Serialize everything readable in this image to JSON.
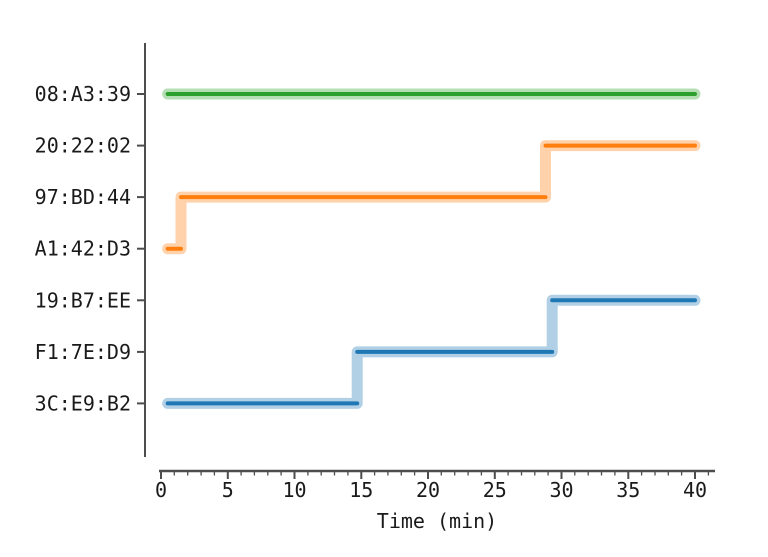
{
  "chart_data": {
    "type": "step",
    "title": "",
    "xlabel": "Time (min)",
    "ylabel": "",
    "xlim": [
      -0.2,
      41.5
    ],
    "x_major_ticks": [
      0,
      5,
      10,
      15,
      20,
      25,
      30,
      35,
      40
    ],
    "x_tick_labels": [
      "0",
      "5",
      "10",
      "15",
      "20",
      "25",
      "30",
      "35",
      "40"
    ],
    "x_minor_tick_step": 1,
    "grid": false,
    "legend": "none",
    "categories_top_to_bottom": [
      "08:A3:39",
      "20:22:02",
      "97:BD:44",
      "A1:42:D3",
      "19:B7:EE",
      "F1:7E:D9",
      "3C:E9:B2"
    ],
    "series": [
      {
        "name": "green-track",
        "color": "#2ca02c",
        "segments": [
          {
            "level": "08:A3:39",
            "start": 0.5,
            "end": 40
          }
        ]
      },
      {
        "name": "orange-track",
        "color": "#ff7f0e",
        "segments": [
          {
            "level": "A1:42:D3",
            "start": 0.5,
            "end": 1.5
          },
          {
            "level": "97:BD:44",
            "start": 1.5,
            "end": 28.8
          },
          {
            "level": "20:22:02",
            "start": 28.8,
            "end": 40
          }
        ]
      },
      {
        "name": "blue-track",
        "color": "#1f77b4",
        "segments": [
          {
            "level": "3C:E9:B2",
            "start": 0.5,
            "end": 14.7
          },
          {
            "level": "F1:7E:D9",
            "start": 14.7,
            "end": 29.3
          },
          {
            "level": "19:B7:EE",
            "start": 29.3,
            "end": 40
          }
        ]
      }
    ],
    "style": {
      "axis_color": "#4d4d4d",
      "text_color": "#1a1a1a",
      "background": "#ffffff",
      "halo_opacity": 0.35,
      "halo_width": 11,
      "core_width": 4
    }
  }
}
